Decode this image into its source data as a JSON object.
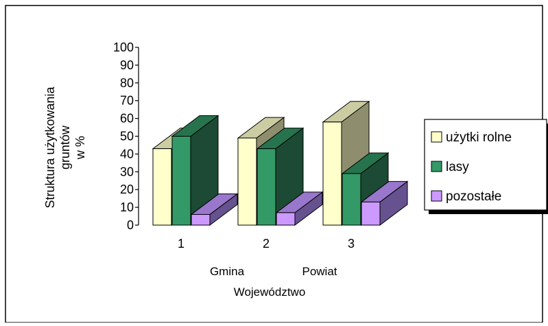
{
  "chart_data": {
    "type": "bar",
    "style": "3d-clustered-column",
    "categories": [
      "1",
      "2",
      "3"
    ],
    "category_names": [
      "Gmina",
      "Powiat",
      "Województwo"
    ],
    "series": [
      {
        "name": "użytki rolne",
        "values": [
          43,
          49,
          58
        ]
      },
      {
        "name": "lasy",
        "values": [
          50,
          43,
          29
        ]
      },
      {
        "name": "pozostałe",
        "values": [
          6,
          7,
          13
        ]
      }
    ],
    "ylabel": [
      "Struktura użytkowania",
      "gruntów",
      "w %"
    ],
    "ylim": [
      0,
      100
    ],
    "yticks": [
      0,
      10,
      20,
      30,
      40,
      50,
      60,
      70,
      80,
      90,
      100
    ],
    "legend_position": "right",
    "colors": {
      "użytki rolne": {
        "front": "#ffffcc",
        "side": "#8e8e6e",
        "top": "#cccca3"
      },
      "lasy": {
        "front": "#339966",
        "side": "#1c4a34",
        "top": "#26734d"
      },
      "pozostałe": {
        "front": "#cc99ff",
        "side": "#66528f",
        "top": "#9977cc"
      }
    }
  }
}
